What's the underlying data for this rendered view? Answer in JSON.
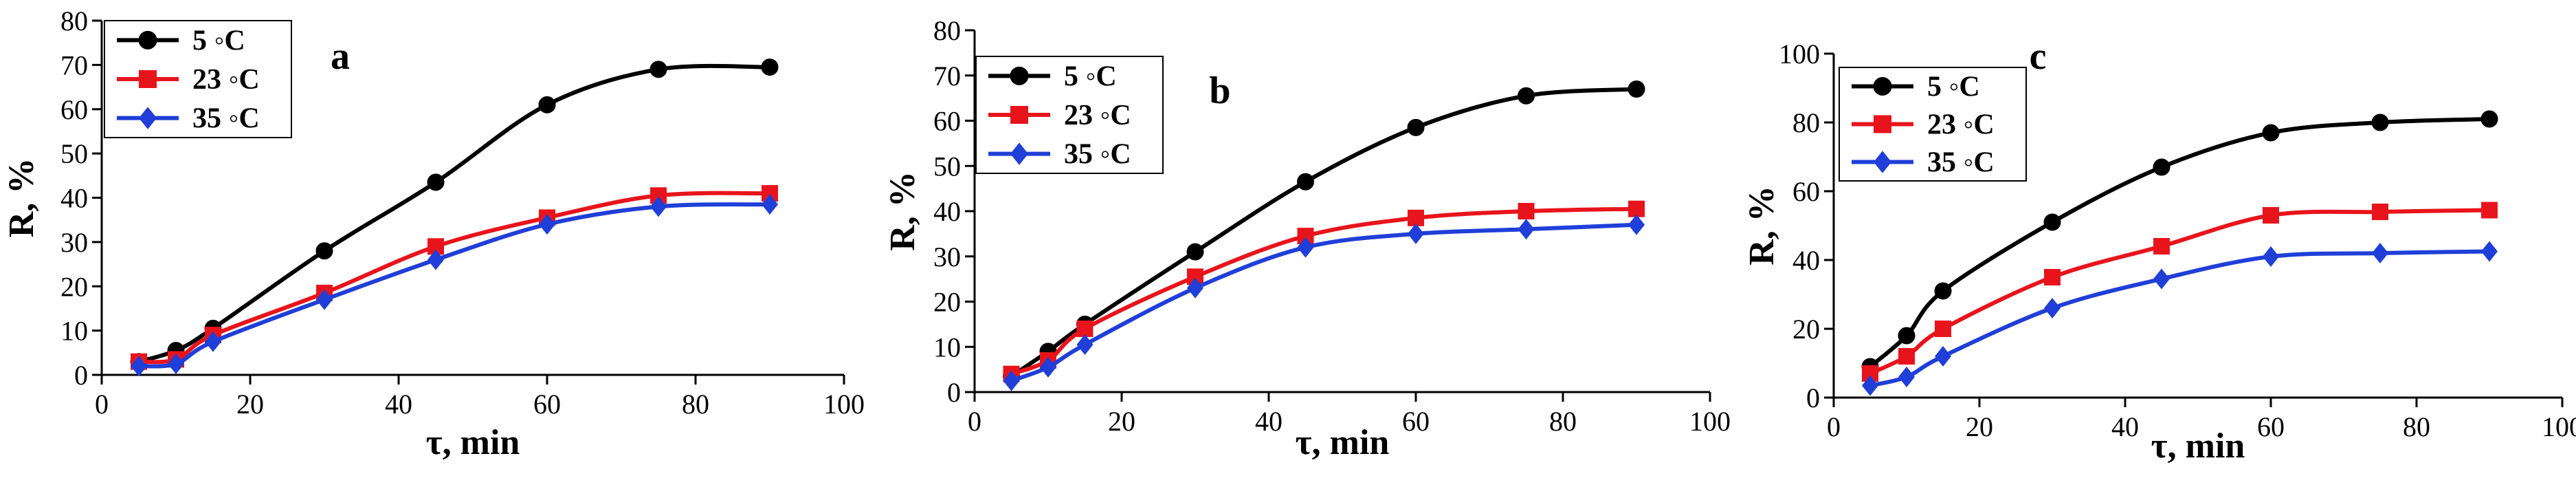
{
  "chart_data": [
    {
      "type": "line",
      "panel_label": "a",
      "xlabel": "τ, min",
      "ylabel": "R, %",
      "xlim": [
        0,
        100
      ],
      "ylim": [
        0,
        80
      ],
      "xticks": [
        0,
        20,
        40,
        60,
        80,
        100
      ],
      "yticks": [
        0,
        10,
        20,
        30,
        40,
        50,
        60,
        70,
        80
      ],
      "legend_position": "top-left",
      "series": [
        {
          "name": "5 ◦C",
          "color": "#000000",
          "marker": "circle",
          "x": [
            5,
            10,
            15,
            30,
            45,
            60,
            75,
            90
          ],
          "values": [
            3,
            5.5,
            10.5,
            28,
            43.5,
            61,
            69,
            69.5
          ]
        },
        {
          "name": "23 ◦C",
          "color": "#e8141c",
          "marker": "square",
          "x": [
            5,
            10,
            15,
            30,
            45,
            60,
            75,
            90
          ],
          "values": [
            3,
            3.5,
            9,
            18.5,
            29,
            35.5,
            40.5,
            41
          ]
        },
        {
          "name": "35 ◦C",
          "color": "#1f3fd8",
          "marker": "diamond",
          "x": [
            5,
            10,
            15,
            30,
            45,
            60,
            75,
            90
          ],
          "values": [
            2,
            2.5,
            7.5,
            17,
            26,
            34,
            38,
            38.5
          ]
        }
      ]
    },
    {
      "type": "line",
      "panel_label": "b",
      "xlabel": "τ, min",
      "ylabel": "R, %",
      "xlim": [
        0,
        100
      ],
      "ylim": [
        0,
        80
      ],
      "xticks": [
        0,
        20,
        40,
        60,
        80,
        100
      ],
      "yticks": [
        0,
        10,
        20,
        30,
        40,
        50,
        60,
        70,
        80
      ],
      "legend_position": "top-left",
      "series": [
        {
          "name": "5 ◦C",
          "color": "#000000",
          "marker": "circle",
          "x": [
            5,
            10,
            15,
            30,
            45,
            60,
            75,
            90
          ],
          "values": [
            3.5,
            9,
            15,
            31,
            46.5,
            58.5,
            65.5,
            67
          ]
        },
        {
          "name": "23 ◦C",
          "color": "#e8141c",
          "marker": "square",
          "x": [
            5,
            10,
            15,
            30,
            45,
            60,
            75,
            90
          ],
          "values": [
            4,
            7,
            14,
            25.5,
            34.5,
            38.5,
            40,
            40.5
          ]
        },
        {
          "name": "35 ◦C",
          "color": "#1f3fd8",
          "marker": "diamond",
          "x": [
            5,
            10,
            15,
            30,
            45,
            60,
            75,
            90
          ],
          "values": [
            2.5,
            5.5,
            10.5,
            23,
            32,
            35,
            36,
            37
          ]
        }
      ]
    },
    {
      "type": "line",
      "panel_label": "c",
      "xlabel": "τ, min",
      "ylabel": "R, %",
      "xlim": [
        0,
        100
      ],
      "ylim": [
        0,
        100
      ],
      "xticks": [
        0,
        20,
        40,
        60,
        80,
        100
      ],
      "yticks": [
        0,
        20,
        40,
        60,
        80,
        100
      ],
      "legend_position": "top-left",
      "series": [
        {
          "name": "5 ◦C",
          "color": "#000000",
          "marker": "circle",
          "x": [
            5,
            10,
            15,
            30,
            45,
            60,
            75,
            90
          ],
          "values": [
            9,
            18,
            31,
            51,
            67,
            77,
            80,
            81
          ]
        },
        {
          "name": "23 ◦C",
          "color": "#e8141c",
          "marker": "square",
          "x": [
            5,
            10,
            15,
            30,
            45,
            60,
            75,
            90
          ],
          "values": [
            7,
            12,
            20,
            35,
            44,
            53,
            54,
            54.5
          ]
        },
        {
          "name": "35 ◦C",
          "color": "#1f3fd8",
          "marker": "diamond",
          "x": [
            5,
            10,
            15,
            30,
            45,
            60,
            75,
            90
          ],
          "values": [
            3.5,
            6,
            12,
            26,
            34.5,
            41,
            42,
            42.5
          ]
        }
      ]
    }
  ]
}
